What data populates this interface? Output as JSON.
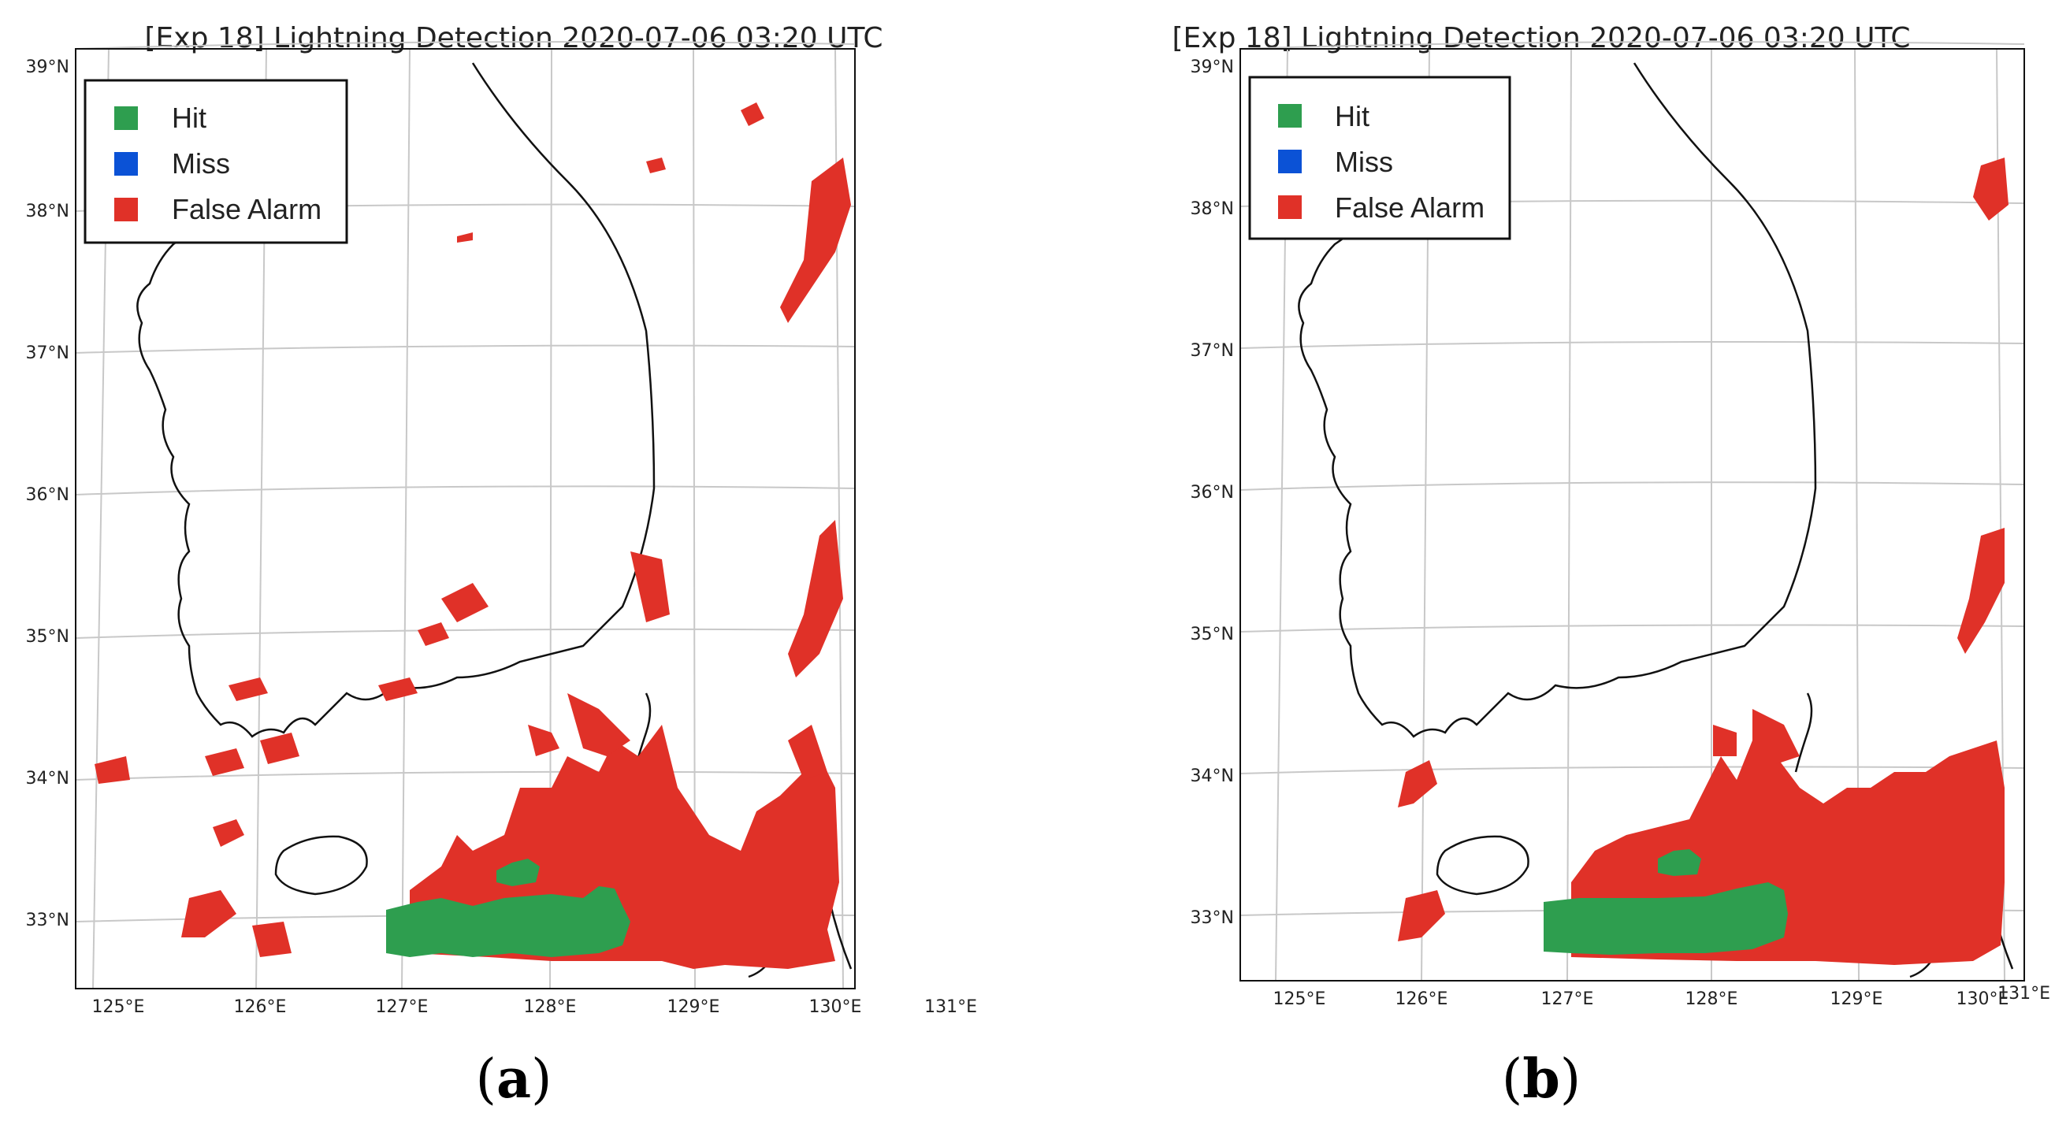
{
  "panels": [
    {
      "id": "a",
      "title": "[Exp 18] Lightning Detection 2020-07-06 03:20 UTC",
      "label": "a",
      "legend": [
        {
          "label": "Hit",
          "color": "#2e9e4f"
        },
        {
          "label": "Miss",
          "color": "#0b52d6"
        },
        {
          "label": "False Alarm",
          "color": "#e03128"
        }
      ],
      "lat_labels": [
        "39°N",
        "38°N",
        "37°N",
        "36°N",
        "35°N",
        "34°N",
        "33°N"
      ],
      "lon_labels": [
        "125°E",
        "126°E",
        "127°E",
        "128°E",
        "129°E",
        "130°E",
        "131°E"
      ]
    },
    {
      "id": "b",
      "title": "[Exp 18] Lightning Detection 2020-07-06 03:20 UTC",
      "label": "b",
      "legend": [
        {
          "label": "Hit",
          "color": "#2e9e4f"
        },
        {
          "label": "Miss",
          "color": "#0b52d6"
        },
        {
          "label": "False Alarm",
          "color": "#e03128"
        }
      ],
      "lat_labels": [
        "39°N",
        "38°N",
        "37°N",
        "36°N",
        "35°N",
        "34°N",
        "33°N"
      ],
      "lon_labels": [
        "125°E",
        "126°E",
        "127°E",
        "128°E",
        "129°E",
        "130°E",
        "131°E"
      ]
    }
  ],
  "paren_open": "(",
  "paren_close": ")",
  "colors": {
    "hit": "#2e9e4f",
    "miss": "#0b52d6",
    "false_alarm": "#e03128",
    "coast": "#111111",
    "grid": "#c8c8c8"
  }
}
